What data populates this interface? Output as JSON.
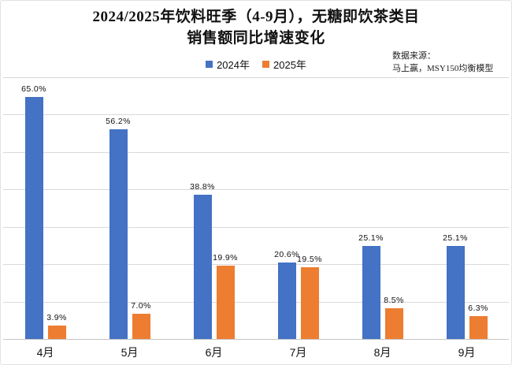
{
  "title": {
    "line1": "2024/2025年饮料旺季（4-9月），无糖即饮茶类目",
    "line2": "销售额同比增速变化"
  },
  "source": {
    "line1": "数据来源：",
    "line2": "马上赢，MSY150均衡模型"
  },
  "chart_data": {
    "type": "bar",
    "title": "2024/2025年饮料旺季（4-9月），无糖即饮茶类目销售额同比增速变化",
    "categories": [
      "4月",
      "5月",
      "6月",
      "7月",
      "8月",
      "9月"
    ],
    "series": [
      {
        "name": "2024年",
        "color": "#4472C4",
        "values": [
          65.0,
          56.2,
          38.8,
          20.6,
          25.1,
          25.1
        ],
        "labels": [
          "65.0%",
          "56.2%",
          "38.8%",
          "20.6%",
          "25.1%",
          "25.1%"
        ]
      },
      {
        "name": "2025年",
        "color": "#ED7D31",
        "values": [
          3.9,
          7.0,
          19.9,
          19.5,
          8.5,
          6.3
        ],
        "labels": [
          "3.9%",
          "7.0%",
          "19.9%",
          "19.5%",
          "8.5%",
          "6.3%"
        ]
      }
    ],
    "xlabel": "",
    "ylabel": "",
    "ylim": [
      0,
      70
    ],
    "grid_step": 10,
    "grid": true,
    "y_axis_labels_visible": false,
    "legend_position": "top-center"
  },
  "colors": {
    "background": "#ffffff",
    "border": "#e2e2e2",
    "gridline": "#d9d9d9",
    "axis": "#c6c6c6",
    "text": "#111111"
  }
}
